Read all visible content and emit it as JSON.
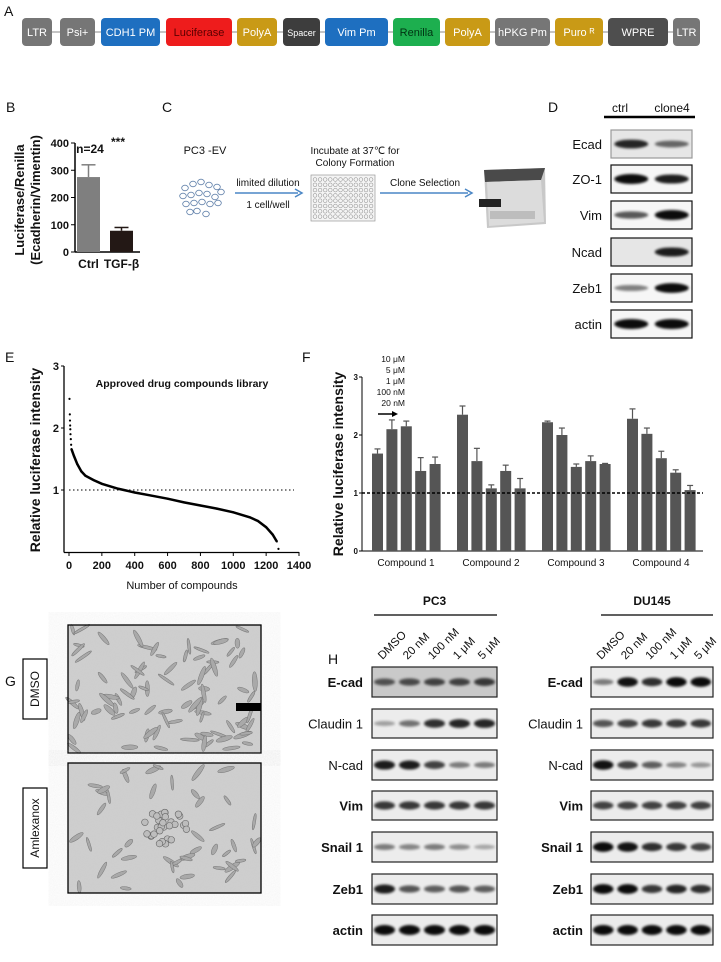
{
  "panels": {
    "A": "A",
    "B": "B",
    "C": "C",
    "D": "D",
    "E": "E",
    "F": "F",
    "G": "G",
    "H": "H"
  },
  "construct": [
    {
      "label": "LTR",
      "color": "#767676",
      "text": "#ffffff"
    },
    {
      "label": "Psi+",
      "color": "#767676",
      "text": "#ffffff"
    },
    {
      "label": "CDH1 PM",
      "color": "#1e6fc0",
      "text": "#ffffff"
    },
    {
      "label": "Luciferase",
      "color": "#ee1c1c",
      "text": "#5a0000"
    },
    {
      "label": "PolyA",
      "color": "#c99a16",
      "text": "#ffffff"
    },
    {
      "label": "Spacer",
      "color": "#3d3d3d",
      "text": "#ffffff"
    },
    {
      "label": "Vim Pm",
      "color": "#1e6fc0",
      "text": "#ffffff"
    },
    {
      "label": "Renilla",
      "color": "#1daf4f",
      "text": "#003312"
    },
    {
      "label": "PolyA",
      "color": "#c99a16",
      "text": "#ffffff"
    },
    {
      "label": "hPKG Pm",
      "color": "#767676",
      "text": "#ffffff"
    },
    {
      "label": "Puro ᴿ",
      "color": "#c99a16",
      "text": "#ffffff"
    },
    {
      "label": "WPRE",
      "color": "#4e4e4e",
      "text": "#ffffff"
    },
    {
      "label": "LTR",
      "color": "#767676",
      "text": "#ffffff"
    }
  ],
  "diagram_c": {
    "cell_line": "PC3 -EV",
    "step1_top": "limited dilution",
    "step1_bottom": "1 cell/well",
    "incubate_line1": "Incubate at 37℃ for",
    "incubate_line2": "Colony Formation",
    "step2": "Clone Selection",
    "arrow_color": "#4a86c5"
  },
  "blot_d": {
    "lanes": [
      "ctrl",
      "clone4"
    ],
    "rows": [
      {
        "label": "Ecad",
        "bands": [
          0.8,
          0.45
        ]
      },
      {
        "label": "ZO-1",
        "bands": [
          1.0,
          0.85
        ]
      },
      {
        "label": "Vim",
        "bands": [
          0.55,
          1.0
        ]
      },
      {
        "label": "Ncad",
        "bands": [
          0.0,
          0.85
        ]
      },
      {
        "label": "Zeb1",
        "bands": [
          0.35,
          0.95
        ]
      },
      {
        "label": "actin",
        "bands": [
          1.0,
          1.0
        ]
      }
    ]
  },
  "micrographs": {
    "labels": [
      "DMSO",
      "Amlexanox"
    ]
  },
  "blot_h": {
    "lanes": [
      "DMSO",
      "20 nM",
      "100 nM",
      "1 μM",
      "5 μM"
    ],
    "cell_lines": [
      {
        "name": "PC3",
        "rows": [
          {
            "label": "E-cad",
            "bands": [
              0.5,
              0.55,
              0.6,
              0.6,
              0.65
            ]
          },
          {
            "label": "Claudin 1",
            "bands": [
              0.15,
              0.4,
              0.75,
              0.8,
              0.8
            ]
          },
          {
            "label": "N-cad",
            "bands": [
              0.85,
              0.85,
              0.65,
              0.35,
              0.35
            ]
          },
          {
            "label": "Vim",
            "bands": [
              0.7,
              0.7,
              0.7,
              0.7,
              0.7
            ]
          },
          {
            "label": "Snail 1",
            "bands": [
              0.35,
              0.3,
              0.35,
              0.25,
              0.12
            ]
          },
          {
            "label": "Zeb1",
            "bands": [
              0.85,
              0.55,
              0.5,
              0.55,
              0.5
            ]
          },
          {
            "label": "actin",
            "bands": [
              1,
              1,
              1,
              1,
              1
            ]
          }
        ]
      },
      {
        "name": "DU145",
        "rows": [
          {
            "label": "E-cad",
            "bands": [
              0.35,
              0.9,
              0.75,
              0.95,
              0.95
            ]
          },
          {
            "label": "Claudin 1",
            "bands": [
              0.55,
              0.65,
              0.7,
              0.7,
              0.7
            ]
          },
          {
            "label": "N-cad",
            "bands": [
              0.9,
              0.65,
              0.5,
              0.3,
              0.2
            ]
          },
          {
            "label": "Vim",
            "bands": [
              0.65,
              0.65,
              0.65,
              0.65,
              0.65
            ]
          },
          {
            "label": "Snail 1",
            "bands": [
              0.95,
              0.9,
              0.75,
              0.7,
              0.65
            ]
          },
          {
            "label": "Zeb1",
            "bands": [
              0.95,
              0.95,
              0.7,
              0.8,
              0.75
            ]
          },
          {
            "label": "actin",
            "bands": [
              1,
              1,
              1,
              1,
              1
            ]
          }
        ]
      }
    ]
  },
  "chart_data": [
    {
      "id": "B",
      "type": "bar",
      "ylabel_line1": "Luciferase/Renilla",
      "ylabel_line2": "(Ecadherin/Vimentin)",
      "categories": [
        "Ctrl",
        "TGF-β"
      ],
      "values": [
        275,
        78
      ],
      "errors": [
        45,
        12
      ],
      "colors": [
        "#7f7f7f",
        "#231815"
      ],
      "ylim": [
        0,
        400
      ],
      "yticks": [
        "0",
        "100",
        "200",
        "300",
        "400"
      ],
      "annotations": [
        "n=24",
        "***"
      ]
    },
    {
      "id": "E",
      "type": "scatter",
      "title": "Approved drug compounds library",
      "xlabel": "Number of compounds",
      "ylabel": "Relative luciferase intensity",
      "xlim": [
        0,
        1400
      ],
      "ylim": [
        0,
        3
      ],
      "xticks": [
        "0",
        "200",
        "400",
        "600",
        "800",
        "1000",
        "1200",
        "1400"
      ],
      "yticks": [
        "1",
        "2",
        "3"
      ],
      "reference_line": 1,
      "points": [
        [
          3,
          2.47
        ],
        [
          5,
          2.22
        ],
        [
          6,
          2.12
        ],
        [
          7,
          2.04
        ],
        [
          8,
          1.98
        ],
        [
          9,
          1.9
        ],
        [
          11,
          1.82
        ],
        [
          13,
          1.73
        ],
        [
          15,
          1.66
        ],
        [
          30,
          1.55
        ],
        [
          50,
          1.42
        ],
        [
          75,
          1.3
        ],
        [
          100,
          1.23
        ],
        [
          150,
          1.16
        ],
        [
          200,
          1.1
        ],
        [
          300,
          1.02
        ],
        [
          400,
          0.96
        ],
        [
          500,
          0.91
        ],
        [
          600,
          0.86
        ],
        [
          700,
          0.8
        ],
        [
          800,
          0.75
        ],
        [
          900,
          0.7
        ],
        [
          1000,
          0.64
        ],
        [
          1100,
          0.56
        ],
        [
          1150,
          0.5
        ],
        [
          1200,
          0.4
        ],
        [
          1240,
          0.28
        ],
        [
          1265,
          0.17
        ],
        [
          1275,
          0.05
        ]
      ]
    },
    {
      "id": "F",
      "type": "bar",
      "ylabel": "Relative luciferase intensity",
      "ylim": [
        0,
        3
      ],
      "yticks": [
        "0",
        "1",
        "2",
        "3"
      ],
      "reference_line": 1,
      "dose_legend": [
        "10 μM",
        "5 μM",
        "1 μM",
        "100 nM",
        "20 nM"
      ],
      "categories": [
        "Compound 1",
        "Compound 2",
        "Compound 3",
        "Compound 4"
      ],
      "values": [
        [
          1.68,
          2.1,
          2.15,
          1.38,
          1.5
        ],
        [
          2.35,
          1.55,
          1.08,
          1.38,
          1.08
        ],
        [
          2.22,
          2.0,
          1.45,
          1.55,
          1.5
        ],
        [
          2.28,
          2.02,
          1.6,
          1.35,
          1.05
        ]
      ],
      "errors": [
        [
          0.08,
          0.16,
          0.09,
          0.23,
          0.12
        ],
        [
          0.15,
          0.22,
          0.06,
          0.1,
          0.17
        ],
        [
          0.02,
          0.12,
          0.05,
          0.09,
          0.01
        ],
        [
          0.17,
          0.1,
          0.12,
          0.05,
          0.08
        ]
      ],
      "color": "#555555"
    }
  ]
}
